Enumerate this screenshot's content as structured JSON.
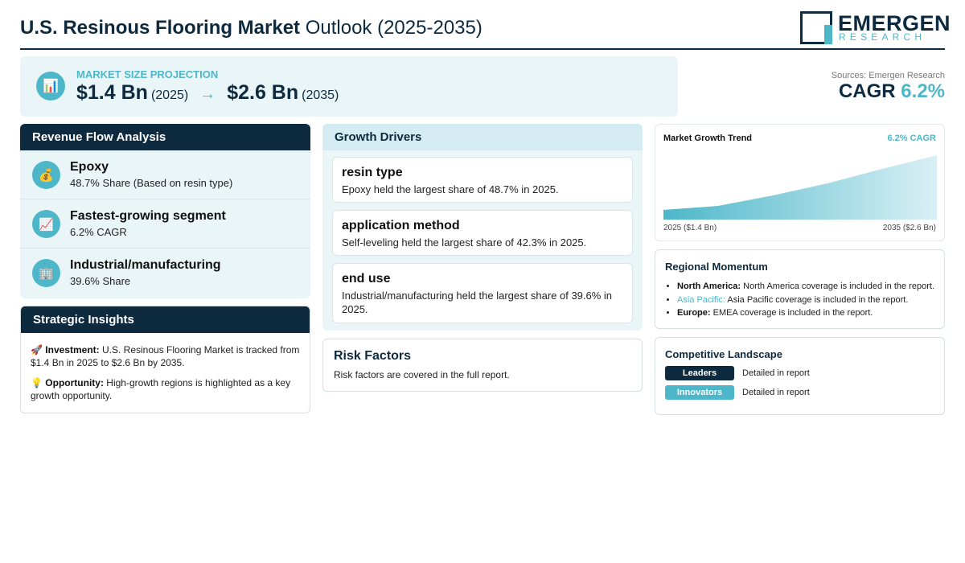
{
  "header": {
    "title_bold": "U.S. Resinous Flooring Market",
    "title_rest": " Outlook (2025-2035)",
    "logo_main": "EMERGEN",
    "logo_sub": "RESEARCH"
  },
  "projection": {
    "icon": "bar-chart-icon",
    "label": "MARKET SIZE PROJECTION",
    "start_value": "$1.4 Bn",
    "start_year": "(2025)",
    "arrow": "→",
    "end_value": "$2.6 Bn",
    "end_year": "(2035)"
  },
  "summary": {
    "sources": "Sources: Emergen Research",
    "cagr_label": "CAGR",
    "cagr_value": "6.2%"
  },
  "revenue": {
    "title": "Revenue Flow Analysis",
    "items": [
      {
        "icon": "money-bag-icon",
        "glyph": "💰",
        "title": "Epoxy",
        "subtitle": "48.7% Share (Based on resin type)"
      },
      {
        "icon": "trending-up-icon",
        "glyph": "📈",
        "title": "Fastest-growing segment",
        "subtitle": "6.2% CAGR"
      },
      {
        "icon": "building-icon",
        "glyph": "🏢",
        "title": "Industrial/manufacturing",
        "subtitle": "39.6% Share"
      }
    ]
  },
  "insights": {
    "title": "Strategic Insights",
    "items": [
      {
        "glyph": "🚀",
        "label": "Investment:",
        "text": "U.S. Resinous Flooring Market is tracked from $1.4 Bn in 2025 to $2.6 Bn by 2035."
      },
      {
        "glyph": "💡",
        "label": "Opportunity:",
        "text": "High-growth regions is highlighted as a key growth opportunity."
      }
    ]
  },
  "drivers": {
    "title": "Growth Drivers",
    "cards": [
      {
        "heading": "resin type",
        "text": "Epoxy held the largest share of 48.7% in 2025."
      },
      {
        "heading": "application method",
        "text": "Self-leveling held the largest share of 42.3% in 2025."
      },
      {
        "heading": "end use",
        "text": "Industrial/manufacturing held the largest share of 39.6% in 2025."
      }
    ]
  },
  "risk": {
    "title": "Risk Factors",
    "text": "Risk factors are covered in the full report."
  },
  "trend": {
    "title": "Market Growth Trend",
    "cagr": "6.2% CAGR",
    "start_label": "2025 ($1.4 Bn)",
    "end_label": "2035 ($2.6 Bn)",
    "colors": {
      "fill_start": "#4db7c9",
      "fill_end": "#d9f0f5"
    }
  },
  "regional": {
    "title": "Regional Momentum",
    "items": [
      {
        "name": "North America:",
        "text": "North America coverage is included in the report."
      },
      {
        "name": "Asia Pacific:",
        "text": "Asia Pacific coverage is included in the report."
      },
      {
        "name": "Europe:",
        "text": "EMEA coverage is included in the report."
      }
    ]
  },
  "competitive": {
    "title": "Competitive Landscape",
    "rows": [
      {
        "badge": "Leaders",
        "text": "Detailed in report",
        "color": "#0e2a3f"
      },
      {
        "badge": "Innovators",
        "text": "Detailed in report",
        "color": "#4db7c9"
      }
    ]
  }
}
